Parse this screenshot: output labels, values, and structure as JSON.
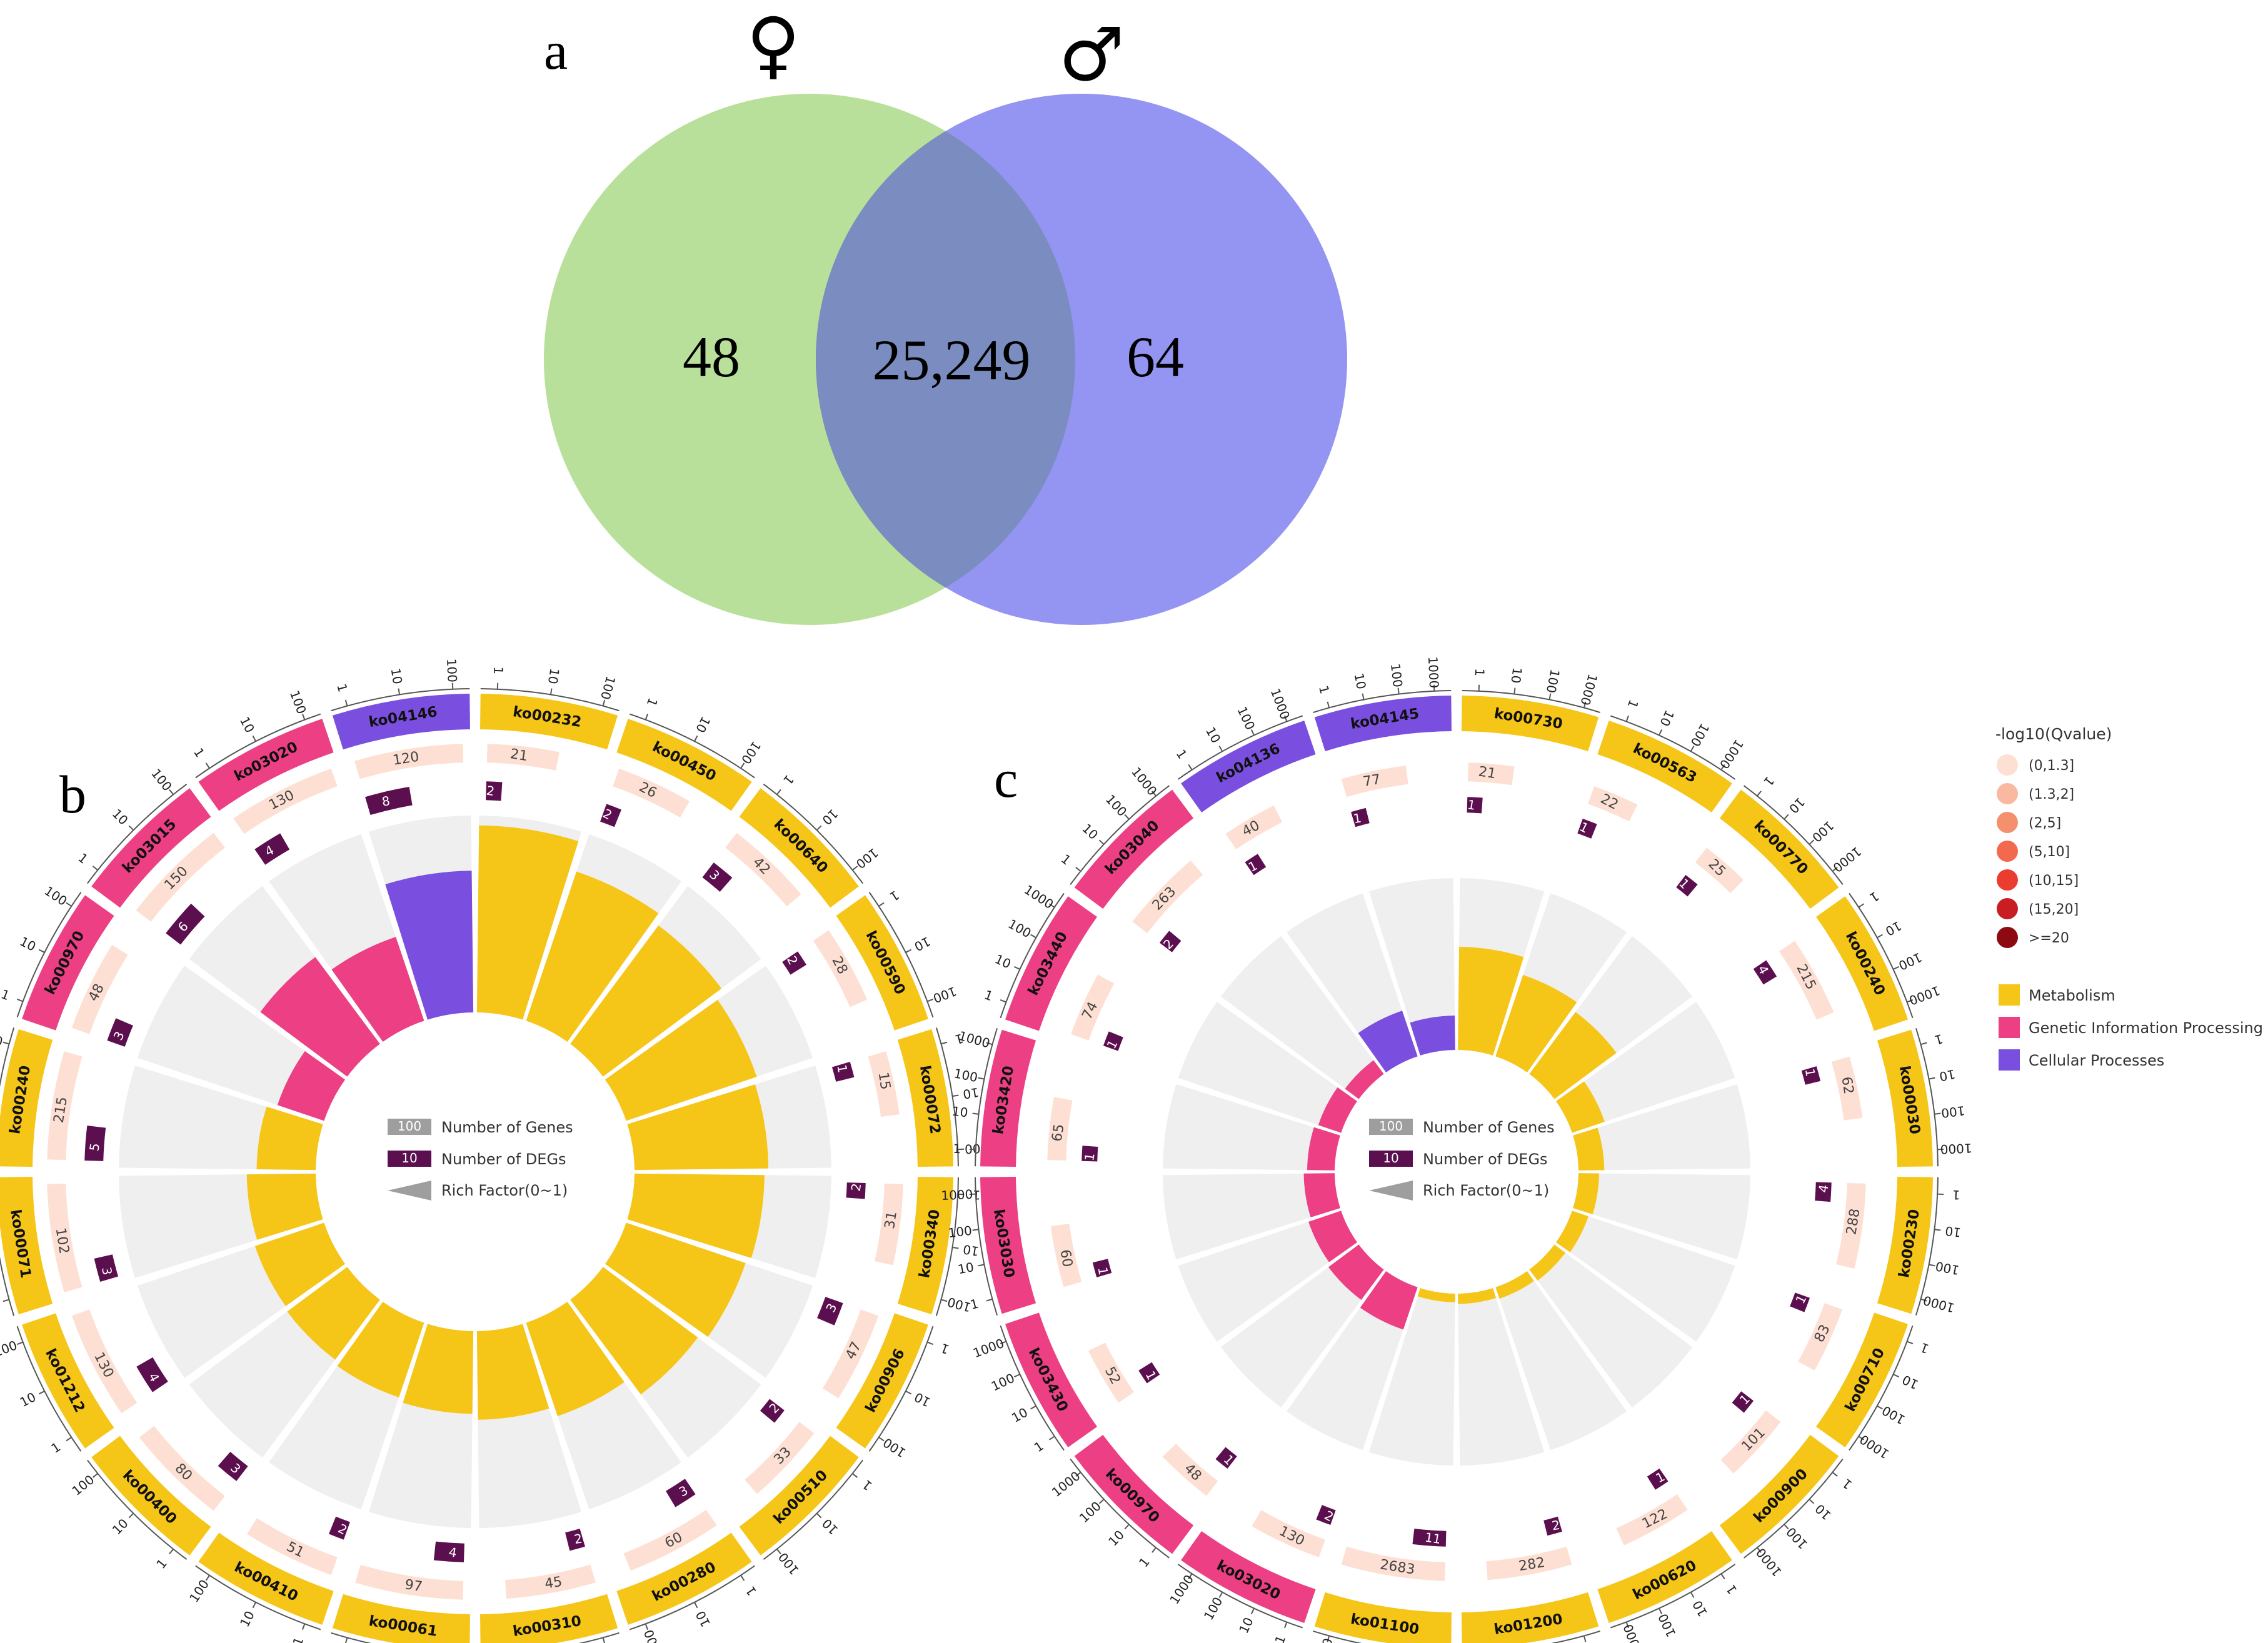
{
  "panels": {
    "a": "a",
    "b": "b",
    "c": "c"
  },
  "venn": {
    "female_symbol": "♀",
    "male_symbol": "♂",
    "female_only": "48",
    "shared": "25,249",
    "male_only": "64",
    "colors": {
      "female": "#b9e09a",
      "male": "#9494f2",
      "overlap": "#7a8cc0"
    }
  },
  "legend": {
    "qvalue_title": "-log10(Qvalue)",
    "qvalue_bins": [
      {
        "label": "(0,1.3]",
        "color": "#fde0d3"
      },
      {
        "label": "(1.3,2]",
        "color": "#f9b8a0"
      },
      {
        "label": "(2,5]",
        "color": "#f5906e"
      },
      {
        "label": "(5,10]",
        "color": "#f2694e"
      },
      {
        "label": "(10,15]",
        "color": "#ea3d30"
      },
      {
        "label": "(15,20]",
        "color": "#c81d22"
      },
      {
        "label": ">=20",
        "color": "#8e0a12"
      }
    ],
    "categories": [
      {
        "label": "Metabolism",
        "color": "#f5c518"
      },
      {
        "label": "Genetic Information Processing",
        "color": "#ec3f84"
      },
      {
        "label": "Cellular Processes",
        "color": "#7a4fe0"
      }
    ],
    "center": {
      "genes_label": "Number of Genes",
      "genes_sample": "100",
      "degs_label": "Number of DEGs",
      "degs_sample": "10",
      "rich_label": "Rich Factor(0~1)"
    }
  },
  "chart_data": [
    {
      "panel": "b",
      "type": "circos-enrichment",
      "series_fields": [
        "category",
        "genes",
        "degs",
        "rich_factor"
      ],
      "pathways": [
        {
          "id": "ko00232",
          "category": "Metabolism",
          "genes": 21,
          "degs": 2,
          "rich_factor": 0.95
        },
        {
          "id": "ko00450",
          "category": "Metabolism",
          "genes": 26,
          "degs": 2,
          "rich_factor": 0.8
        },
        {
          "id": "ko00640",
          "category": "Metabolism",
          "genes": 42,
          "degs": 3,
          "rich_factor": 0.75
        },
        {
          "id": "ko00590",
          "category": "Metabolism",
          "genes": 28,
          "degs": 2,
          "rich_factor": 0.7
        },
        {
          "id": "ko00072",
          "category": "Metabolism",
          "genes": 15,
          "degs": 1,
          "rich_factor": 0.68
        },
        {
          "id": "ko00340",
          "category": "Metabolism",
          "genes": 31,
          "degs": 2,
          "rich_factor": 0.66
        },
        {
          "id": "ko00906",
          "category": "Metabolism",
          "genes": 47,
          "degs": 3,
          "rich_factor": 0.64
        },
        {
          "id": "ko00510",
          "category": "Metabolism",
          "genes": 33,
          "degs": 2,
          "rich_factor": 0.6
        },
        {
          "id": "ko00280",
          "category": "Metabolism",
          "genes": 60,
          "degs": 3,
          "rich_factor": 0.5
        },
        {
          "id": "ko00310",
          "category": "Metabolism",
          "genes": 45,
          "degs": 2,
          "rich_factor": 0.45
        },
        {
          "id": "ko00061",
          "category": "Metabolism",
          "genes": 97,
          "degs": 4,
          "rich_factor": 0.42
        },
        {
          "id": "ko00410",
          "category": "Metabolism",
          "genes": 51,
          "degs": 2,
          "rich_factor": 0.4
        },
        {
          "id": "ko00400",
          "category": "Metabolism",
          "genes": 80,
          "degs": 3,
          "rich_factor": 0.38
        },
        {
          "id": "ko01212",
          "category": "Metabolism",
          "genes": 130,
          "degs": 4,
          "rich_factor": 0.37
        },
        {
          "id": "ko00071",
          "category": "Metabolism",
          "genes": 102,
          "degs": 3,
          "rich_factor": 0.35
        },
        {
          "id": "ko00240",
          "category": "Metabolism",
          "genes": 215,
          "degs": 5,
          "rich_factor": 0.3
        },
        {
          "id": "ko00970",
          "category": "Genetic Information Processing",
          "genes": 48,
          "degs": 3,
          "rich_factor": 0.25
        },
        {
          "id": "ko03015",
          "category": "Genetic Information Processing",
          "genes": 150,
          "degs": 6,
          "rich_factor": 0.55
        },
        {
          "id": "ko03020",
          "category": "Genetic Information Processing",
          "genes": 130,
          "degs": 4,
          "rich_factor": 0.45
        },
        {
          "id": "ko04146",
          "category": "Cellular Processes",
          "genes": 120,
          "degs": 8,
          "rich_factor": 0.72
        }
      ],
      "outer_scale_ticks": [
        "1",
        "10",
        "100"
      ],
      "qvalue_bin": "(0,1.3]"
    },
    {
      "panel": "c",
      "type": "circos-enrichment",
      "series_fields": [
        "category",
        "genes",
        "degs",
        "rich_factor"
      ],
      "pathways": [
        {
          "id": "ko00730",
          "category": "Metabolism",
          "genes": 21,
          "degs": 1,
          "rich_factor": 0.6
        },
        {
          "id": "ko00563",
          "category": "Metabolism",
          "genes": 22,
          "degs": 1,
          "rich_factor": 0.5
        },
        {
          "id": "ko00770",
          "category": "Metabolism",
          "genes": 25,
          "degs": 1,
          "rich_factor": 0.45
        },
        {
          "id": "ko00240",
          "category": "Metabolism",
          "genes": 215,
          "degs": 4,
          "rich_factor": 0.2
        },
        {
          "id": "ko00030",
          "category": "Metabolism",
          "genes": 62,
          "degs": 1,
          "rich_factor": 0.15
        },
        {
          "id": "ko00230",
          "category": "Metabolism",
          "genes": 288,
          "degs": 4,
          "rich_factor": 0.12
        },
        {
          "id": "ko00710",
          "category": "Metabolism",
          "genes": 83,
          "degs": 1,
          "rich_factor": 0.1
        },
        {
          "id": "ko00900",
          "category": "Metabolism",
          "genes": 101,
          "degs": 1,
          "rich_factor": 0.08
        },
        {
          "id": "ko00620",
          "category": "Metabolism",
          "genes": 122,
          "degs": 1,
          "rich_factor": 0.07
        },
        {
          "id": "ko01200",
          "category": "Metabolism",
          "genes": 282,
          "degs": 2,
          "rich_factor": 0.06
        },
        {
          "id": "ko01100",
          "category": "Metabolism",
          "genes": 2683,
          "degs": 11,
          "rich_factor": 0.05
        },
        {
          "id": "ko03020",
          "category": "Genetic Information Processing",
          "genes": 130,
          "degs": 2,
          "rich_factor": 0.26
        },
        {
          "id": "ko00970",
          "category": "Genetic Information Processing",
          "genes": 48,
          "degs": 1,
          "rich_factor": 0.22
        },
        {
          "id": "ko03430",
          "category": "Genetic Information Processing",
          "genes": 52,
          "degs": 1,
          "rich_factor": 0.2
        },
        {
          "id": "ko03030",
          "category": "Genetic Information Processing",
          "genes": 60,
          "degs": 1,
          "rich_factor": 0.18
        },
        {
          "id": "ko03420",
          "category": "Genetic Information Processing",
          "genes": 65,
          "degs": 1,
          "rich_factor": 0.16
        },
        {
          "id": "ko03440",
          "category": "Genetic Information Processing",
          "genes": 74,
          "degs": 1,
          "rich_factor": 0.14
        },
        {
          "id": "ko03040",
          "category": "Genetic Information Processing",
          "genes": 263,
          "degs": 2,
          "rich_factor": 0.1
        },
        {
          "id": "ko04136",
          "category": "Cellular Processes",
          "genes": 40,
          "degs": 1,
          "rich_factor": 0.28
        },
        {
          "id": "ko04145",
          "category": "Cellular Processes",
          "genes": 77,
          "degs": 1,
          "rich_factor": 0.2
        }
      ],
      "outer_scale_ticks": [
        "1",
        "10",
        "100",
        "1000"
      ],
      "qvalue_bin": "(0,1.3]"
    }
  ]
}
